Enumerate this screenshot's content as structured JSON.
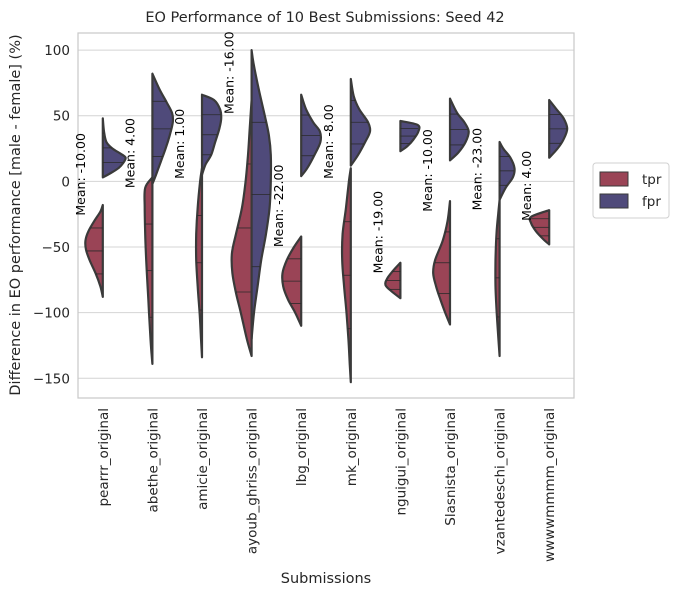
{
  "chart_data": {
    "type": "violin",
    "title": "EO Performance of 10 Best Submissions: Seed 42",
    "xlabel": "Submissions",
    "ylabel": "Difference in EO performance [male - female] (%)",
    "ylim": [
      -165,
      113
    ],
    "yticks": [
      -150,
      -100,
      -50,
      0,
      50,
      100
    ],
    "ytick_labels": [
      "−150",
      "−100",
      "−50",
      "0",
      "50",
      "100"
    ],
    "grid": true,
    "legend_position": "right",
    "colors": {
      "tpr": "#9a4456",
      "fpr": "#4f4a7a"
    },
    "series": [
      {
        "name": "tpr",
        "side": "left"
      },
      {
        "name": "fpr",
        "side": "right"
      }
    ],
    "categories": [
      {
        "label": "pearrr_original",
        "mean_label": "Mean: -10.00",
        "tpr": [
          [
            -88,
            0.0
          ],
          [
            -80,
            0.1
          ],
          [
            -70,
            0.3
          ],
          [
            -60,
            0.55
          ],
          [
            -52,
            0.7
          ],
          [
            -45,
            0.72
          ],
          [
            -38,
            0.6
          ],
          [
            -30,
            0.35
          ],
          [
            -23,
            0.1
          ],
          [
            -18,
            0.0
          ]
        ],
        "fpr": [
          [
            3,
            0.0
          ],
          [
            6,
            0.3
          ],
          [
            10,
            0.65
          ],
          [
            14,
            0.85
          ],
          [
            18,
            0.95
          ],
          [
            21,
            0.75
          ],
          [
            25,
            0.4
          ],
          [
            30,
            0.15
          ],
          [
            38,
            0.05
          ],
          [
            48,
            0.0
          ]
        ]
      },
      {
        "label": "abethe_original",
        "mean_label": "Mean: 4.00",
        "tpr": [
          [
            -139,
            0.0
          ],
          [
            -130,
            0.04
          ],
          [
            -120,
            0.08
          ],
          [
            -100,
            0.14
          ],
          [
            -80,
            0.2
          ],
          [
            -60,
            0.26
          ],
          [
            -40,
            0.3
          ],
          [
            -20,
            0.32
          ],
          [
            -5,
            0.3
          ],
          [
            3,
            0.0
          ]
        ],
        "fpr": [
          [
            -2,
            0.0
          ],
          [
            5,
            0.15
          ],
          [
            15,
            0.35
          ],
          [
            25,
            0.55
          ],
          [
            35,
            0.72
          ],
          [
            45,
            0.85
          ],
          [
            52,
            0.82
          ],
          [
            60,
            0.6
          ],
          [
            70,
            0.3
          ],
          [
            82,
            0.0
          ]
        ]
      },
      {
        "label": "amicie_original",
        "mean_label": "Mean: 1.00",
        "tpr": [
          [
            -134,
            0.0
          ],
          [
            -120,
            0.04
          ],
          [
            -100,
            0.1
          ],
          [
            -80,
            0.18
          ],
          [
            -60,
            0.24
          ],
          [
            -40,
            0.24
          ],
          [
            -20,
            0.18
          ],
          [
            0,
            0.08
          ],
          [
            10,
            0.0
          ]
        ],
        "fpr": [
          [
            5,
            0.0
          ],
          [
            13,
            0.15
          ],
          [
            20,
            0.38
          ],
          [
            30,
            0.55
          ],
          [
            40,
            0.72
          ],
          [
            48,
            0.8
          ],
          [
            55,
            0.75
          ],
          [
            62,
            0.5
          ],
          [
            66,
            0.0
          ]
        ]
      },
      {
        "label": "ayoub_ghriss_original",
        "mean_label": "Mean: -16.00",
        "tpr": [
          [
            -133,
            0.0
          ],
          [
            -120,
            0.2
          ],
          [
            -100,
            0.45
          ],
          [
            -85,
            0.65
          ],
          [
            -70,
            0.8
          ],
          [
            -55,
            0.82
          ],
          [
            -40,
            0.65
          ],
          [
            -20,
            0.4
          ],
          [
            0,
            0.25
          ],
          [
            20,
            0.15
          ],
          [
            40,
            0.08
          ],
          [
            62,
            0.0
          ]
        ],
        "fpr": [
          [
            -120,
            0.0
          ],
          [
            -100,
            0.1
          ],
          [
            -80,
            0.25
          ],
          [
            -60,
            0.4
          ],
          [
            -40,
            0.6
          ],
          [
            -20,
            0.75
          ],
          [
            0,
            0.8
          ],
          [
            20,
            0.8
          ],
          [
            35,
            0.72
          ],
          [
            50,
            0.55
          ],
          [
            70,
            0.3
          ],
          [
            90,
            0.08
          ],
          [
            100,
            0.0
          ]
        ]
      },
      {
        "label": "lbg_original",
        "mean_label": "Mean: -22.00",
        "tpr": [
          [
            -110,
            0.0
          ],
          [
            -100,
            0.25
          ],
          [
            -90,
            0.55
          ],
          [
            -80,
            0.75
          ],
          [
            -70,
            0.78
          ],
          [
            -60,
            0.6
          ],
          [
            -50,
            0.3
          ],
          [
            -42,
            0.0
          ]
        ],
        "fpr": [
          [
            4,
            0.0
          ],
          [
            10,
            0.25
          ],
          [
            20,
            0.55
          ],
          [
            30,
            0.8
          ],
          [
            38,
            0.78
          ],
          [
            45,
            0.5
          ],
          [
            55,
            0.2
          ],
          [
            66,
            0.0
          ]
        ]
      },
      {
        "label": "mk_original",
        "mean_label": "Mean: -8.00",
        "tpr": [
          [
            -153,
            0.0
          ],
          [
            -140,
            0.04
          ],
          [
            -120,
            0.1
          ],
          [
            -100,
            0.18
          ],
          [
            -80,
            0.28
          ],
          [
            -60,
            0.36
          ],
          [
            -40,
            0.34
          ],
          [
            -20,
            0.2
          ],
          [
            0,
            0.08
          ],
          [
            10,
            0.0
          ]
        ],
        "fpr": [
          [
            12,
            0.0
          ],
          [
            20,
            0.3
          ],
          [
            30,
            0.6
          ],
          [
            38,
            0.8
          ],
          [
            45,
            0.72
          ],
          [
            55,
            0.35
          ],
          [
            65,
            0.12
          ],
          [
            78,
            0.0
          ]
        ]
      },
      {
        "label": "nguigui_original",
        "mean_label": "Mean: -19.00",
        "tpr": [
          [
            -89,
            0.0
          ],
          [
            -84,
            0.35
          ],
          [
            -79,
            0.62
          ],
          [
            -74,
            0.55
          ],
          [
            -68,
            0.3
          ],
          [
            -62,
            0.0
          ]
        ],
        "fpr": [
          [
            23,
            0.0
          ],
          [
            27,
            0.3
          ],
          [
            32,
            0.55
          ],
          [
            38,
            0.75
          ],
          [
            43,
            0.72
          ],
          [
            46,
            0.0
          ]
        ]
      },
      {
        "label": "Slasnista_original",
        "mean_label": "Mean: -10.00",
        "tpr": [
          [
            -109,
            0.0
          ],
          [
            -100,
            0.2
          ],
          [
            -90,
            0.4
          ],
          [
            -80,
            0.58
          ],
          [
            -70,
            0.7
          ],
          [
            -60,
            0.62
          ],
          [
            -45,
            0.3
          ],
          [
            -30,
            0.1
          ],
          [
            -15,
            0.0
          ]
        ],
        "fpr": [
          [
            16,
            0.0
          ],
          [
            22,
            0.35
          ],
          [
            30,
            0.65
          ],
          [
            38,
            0.78
          ],
          [
            45,
            0.6
          ],
          [
            52,
            0.3
          ],
          [
            63,
            0.0
          ]
        ]
      },
      {
        "label": "vzantedeschi_original",
        "mean_label": "Mean: -23.00",
        "tpr": [
          [
            -133,
            0.0
          ],
          [
            -120,
            0.05
          ],
          [
            -100,
            0.12
          ],
          [
            -80,
            0.17
          ],
          [
            -60,
            0.17
          ],
          [
            -40,
            0.13
          ],
          [
            -25,
            0.06
          ],
          [
            -14,
            0.0
          ]
        ],
        "fpr": [
          [
            -14,
            0.0
          ],
          [
            -5,
            0.25
          ],
          [
            3,
            0.55
          ],
          [
            10,
            0.62
          ],
          [
            18,
            0.45
          ],
          [
            25,
            0.15
          ],
          [
            30,
            0.0
          ]
        ]
      },
      {
        "label": "wwwwmmmm_original",
        "mean_label": "Mean: 4.00",
        "tpr": [
          [
            -48,
            0.0
          ],
          [
            -44,
            0.25
          ],
          [
            -38,
            0.55
          ],
          [
            -32,
            0.75
          ],
          [
            -27,
            0.75
          ],
          [
            -22,
            0.0
          ]
        ],
        "fpr": [
          [
            18,
            0.0
          ],
          [
            25,
            0.35
          ],
          [
            32,
            0.6
          ],
          [
            40,
            0.75
          ],
          [
            48,
            0.6
          ],
          [
            55,
            0.3
          ],
          [
            62,
            0.0
          ]
        ]
      }
    ]
  }
}
